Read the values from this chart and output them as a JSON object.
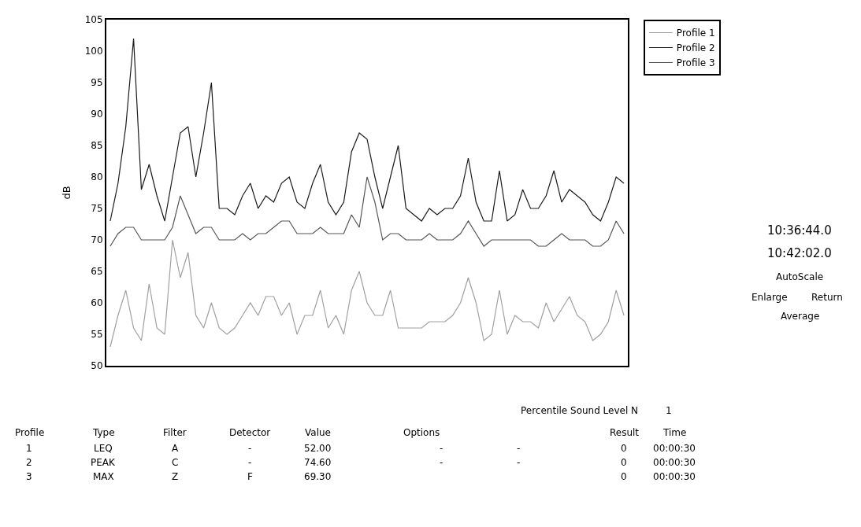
{
  "chart_data": {
    "type": "line",
    "ylabel": "dB",
    "categories": [
      null,
      null,
      null,
      null,
      null,
      null,
      null,
      null,
      null,
      null,
      null,
      null,
      null,
      null,
      null,
      null,
      null,
      null,
      null,
      null,
      null,
      null,
      null,
      null,
      null,
      null,
      null,
      null,
      null,
      null,
      null,
      null,
      null,
      null,
      null,
      null,
      null,
      null,
      null,
      null,
      null,
      null,
      null,
      null,
      null,
      null,
      null,
      null,
      null,
      null,
      null,
      null,
      null,
      null,
      null,
      null,
      null,
      null,
      null,
      null,
      null,
      null,
      null,
      null,
      null,
      null,
      null
    ],
    "series": [
      {
        "name": "Profile 1",
        "color": "#a0a0a0",
        "values": [
          53,
          58,
          62,
          56,
          54,
          63,
          56,
          55,
          70,
          64,
          68,
          58,
          56,
          60,
          56,
          55,
          56,
          58,
          60,
          58,
          61,
          61,
          58,
          60,
          55,
          58,
          58,
          62,
          56,
          58,
          55,
          62,
          65,
          60,
          58,
          58,
          62,
          56,
          56,
          56,
          56,
          57,
          57,
          57,
          58,
          60,
          64,
          60,
          54,
          55,
          62,
          55,
          58,
          57,
          57,
          56,
          60,
          57,
          59,
          61,
          58,
          57,
          54,
          55,
          57,
          62,
          58
        ]
      },
      {
        "name": "Profile 2",
        "color": "#1a1a1a",
        "values": [
          73,
          79,
          88,
          102,
          78,
          82,
          77,
          73,
          80,
          87,
          88,
          80,
          87,
          95,
          75,
          75,
          74,
          77,
          79,
          75,
          77,
          76,
          79,
          80,
          76,
          75,
          79,
          82,
          76,
          74,
          76,
          84,
          87,
          86,
          80,
          75,
          80,
          85,
          75,
          74,
          73,
          75,
          74,
          75,
          75,
          77,
          83,
          76,
          73,
          73,
          81,
          73,
          74,
          78,
          75,
          75,
          77,
          81,
          76,
          78,
          77,
          76,
          74,
          73,
          76,
          80,
          79
        ]
      },
      {
        "name": "Profile 3",
        "color": "#555555",
        "values": [
          69,
          71,
          72,
          72,
          70,
          70,
          70,
          70,
          72,
          77,
          74,
          71,
          72,
          72,
          70,
          70,
          70,
          71,
          70,
          71,
          71,
          72,
          73,
          73,
          71,
          71,
          71,
          72,
          71,
          71,
          71,
          74,
          72,
          80,
          76,
          70,
          71,
          71,
          70,
          70,
          70,
          71,
          70,
          70,
          70,
          71,
          73,
          71,
          69,
          70,
          70,
          70,
          70,
          70,
          70,
          69,
          69,
          70,
          71,
          70,
          70,
          70,
          69,
          69,
          70,
          73,
          71
        ]
      }
    ],
    "ylim": [
      50,
      105
    ],
    "yticks": [
      50,
      55,
      60,
      65,
      70,
      75,
      80,
      85,
      90,
      95,
      100,
      105
    ],
    "grid": false,
    "legend": "top right",
    "marker": "none",
    "line_style": "solid",
    "tick_labels": "y",
    "annotations": [
      "10:36:44.0",
      "10:42:02.0",
      "AutoScale",
      "Enlarge",
      "Return",
      "Average",
      "Percentile Sound Level N",
      "1",
      "Profile",
      "Type",
      "Filter",
      "Detector",
      "Value",
      "Options",
      "Result",
      "Time",
      "1",
      "LEQ",
      "A",
      "-",
      "52.00",
      "-",
      "-",
      "0",
      "00:00:30",
      "2",
      "PEAK",
      "C",
      "-",
      "74.60",
      "-",
      "-",
      "0",
      "00:00:30",
      "3",
      "MAX",
      "Z",
      "F",
      "69.30",
      "0",
      "00:00:30"
    ]
  }
}
